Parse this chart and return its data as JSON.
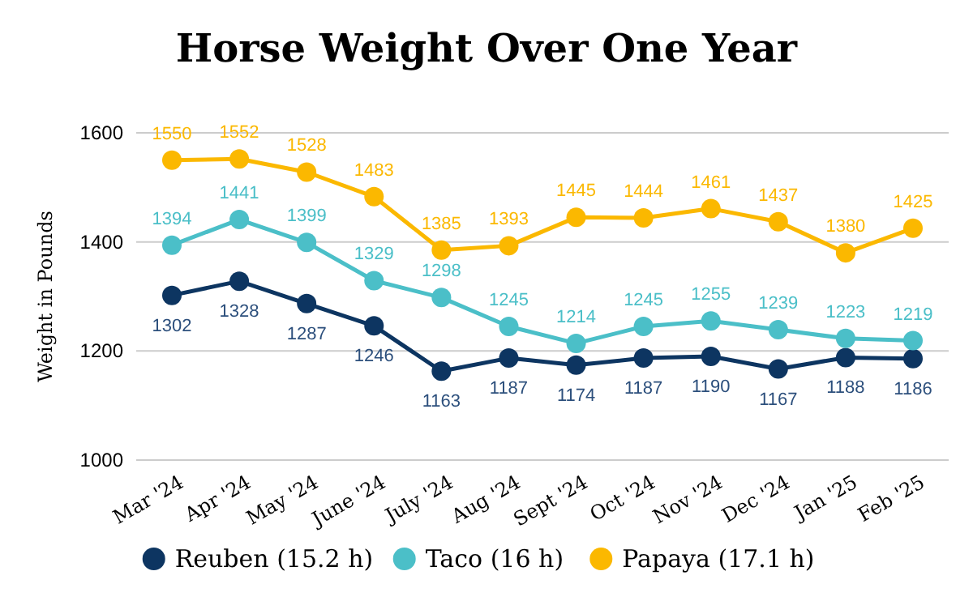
{
  "chart_data": {
    "type": "line",
    "title": "Horse Weight Over One Year",
    "ylabel": "Weight in Pounds",
    "categories": [
      "Mar '24",
      "Apr '24",
      "May '24",
      "June '24",
      "July '24",
      "Aug '24",
      "Sept '24",
      "Oct '24",
      "Nov '24",
      "Dec '24",
      "Jan '25",
      "Feb '25"
    ],
    "series": [
      {
        "name": "Reuben (15.2 h)",
        "color": "#0d3561",
        "values": [
          1302,
          1328,
          1287,
          1246,
          1163,
          1187,
          1174,
          1187,
          1190,
          1167,
          1188,
          1186
        ]
      },
      {
        "name": "Taco (16 h)",
        "color": "#4bbfc8",
        "values": [
          1394,
          1441,
          1399,
          1329,
          1298,
          1245,
          1214,
          1245,
          1255,
          1239,
          1223,
          1219
        ]
      },
      {
        "name": "Papaya (17.1 h)",
        "color": "#fbb800",
        "values": [
          1550,
          1552,
          1528,
          1483,
          1385,
          1393,
          1445,
          1444,
          1461,
          1437,
          1380,
          1425
        ]
      }
    ],
    "ylim": [
      1000,
      1600
    ],
    "yticks": [
      1000,
      1200,
      1400,
      1600
    ],
    "grid": "y",
    "legend": "bottom",
    "marker": "circle",
    "line_style": "solid",
    "data_labels": true
  }
}
